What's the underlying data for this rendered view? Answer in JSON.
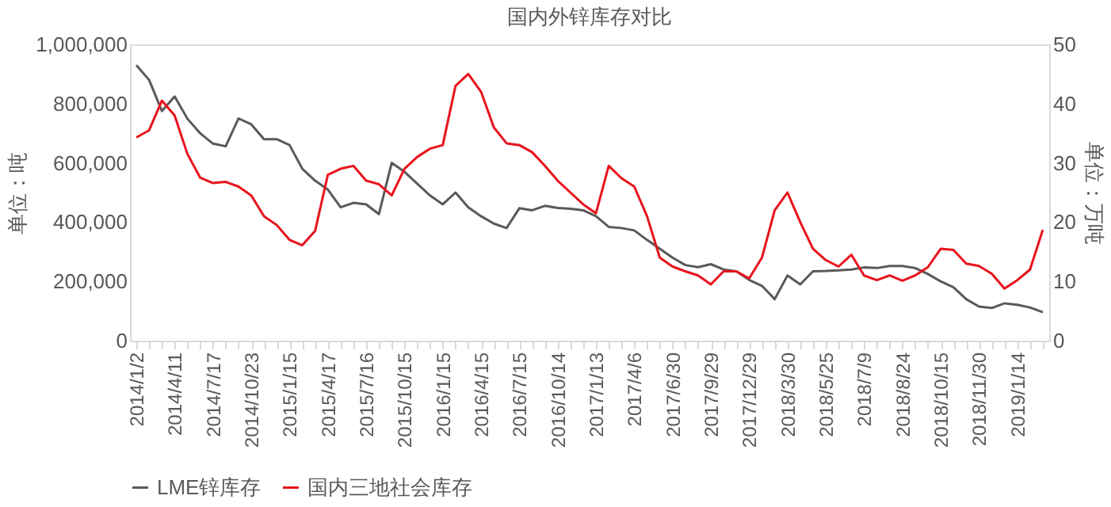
{
  "chart_data": {
    "type": "line",
    "title": "国内外锌库存对比",
    "ylabel": "单位：吨",
    "y2label": "单位：万吨",
    "categories": [
      "2014/1/2",
      null,
      null,
      "2014/4/11",
      null,
      null,
      "2014/7/17",
      null,
      null,
      "2014/10/23",
      null,
      null,
      "2015/1/15",
      null,
      null,
      "2015/4/17",
      null,
      null,
      "2015/7/16",
      null,
      null,
      "2015/10/15",
      null,
      null,
      "2016/1/15",
      null,
      null,
      "2016/4/15",
      null,
      null,
      "2016/7/15",
      null,
      null,
      "2016/10/14",
      null,
      null,
      "2017/1/13",
      null,
      null,
      "2017/4/6",
      null,
      null,
      "2017/6/30",
      null,
      null,
      "2017/9/29",
      null,
      null,
      "2017/12/29",
      null,
      null,
      "2018/3/30",
      null,
      null,
      "2018/5/25",
      null,
      null,
      "2018/7/9",
      null,
      null,
      "2018/8/24",
      null,
      null,
      "2018/10/15",
      null,
      null,
      "2018/11/30",
      null,
      null,
      "2019/1/14",
      null,
      null
    ],
    "series": [
      {
        "name": "LME锌库存",
        "color": "#595959",
        "values": [
          930000,
          880000,
          775000,
          824000,
          749000,
          700000,
          665000,
          656000,
          750000,
          730000,
          680000,
          680000,
          660000,
          580000,
          540000,
          510000,
          450000,
          465000,
          460000,
          427000,
          600000,
          570000,
          530000,
          490000,
          460000,
          500000,
          450000,
          420000,
          395000,
          380000,
          447000,
          440000,
          455000,
          448000,
          445000,
          440000,
          420000,
          384000,
          380000,
          372000,
          340000,
          310000,
          280000,
          255000,
          248000,
          258000,
          240000,
          234000,
          205000,
          185000,
          140000,
          220000,
          190000,
          234000,
          235000,
          237000,
          240000,
          247000,
          245000,
          252000,
          252000,
          245000,
          225000,
          200000,
          180000,
          140000,
          115000,
          110000,
          126000,
          121000,
          112000,
          96000
        ]
      },
      {
        "name": "国内三地社会库存",
        "color": "#e8141c",
        "axis": "y2",
        "values": [
          34.3,
          35.5,
          40.5,
          38,
          31.5,
          27.5,
          26.6,
          26.8,
          26,
          24.5,
          21,
          19.5,
          17,
          16.1,
          18.5,
          28,
          29,
          29.5,
          27,
          26.4,
          24.5,
          29,
          31,
          32.4,
          33,
          43,
          45,
          42,
          36,
          33.3,
          33,
          31.8,
          29.5,
          27,
          25,
          23,
          21.5,
          29.5,
          27.4,
          26,
          21,
          14,
          12.5,
          11.7,
          11,
          9.5,
          11.7,
          11.7,
          10.5,
          14,
          22,
          25,
          20,
          15.5,
          13.6,
          12.5,
          14.5,
          11,
          10.2,
          11,
          10.1,
          11,
          12.4,
          15.5,
          15.3,
          13,
          12.6,
          11.3,
          8.8,
          10.2,
          12,
          18.7
        ]
      }
    ],
    "ylim": [
      0,
      1000000
    ],
    "yticks": [
      0,
      {
        "value": 200000,
        "label": "200,000"
      },
      {
        "value": 400000,
        "label": "400,000"
      },
      {
        "value": 600000,
        "label": "600,000"
      },
      {
        "value": 800000,
        "label": "800,000"
      },
      {
        "value": 1000000,
        "label": "1,000,000"
      }
    ],
    "y2lim": [
      0,
      50
    ],
    "y2ticks": [
      0,
      10,
      20,
      30,
      40,
      50
    ],
    "grid": false,
    "legend": "bottom",
    "marker": "none",
    "line_style": "solid"
  }
}
